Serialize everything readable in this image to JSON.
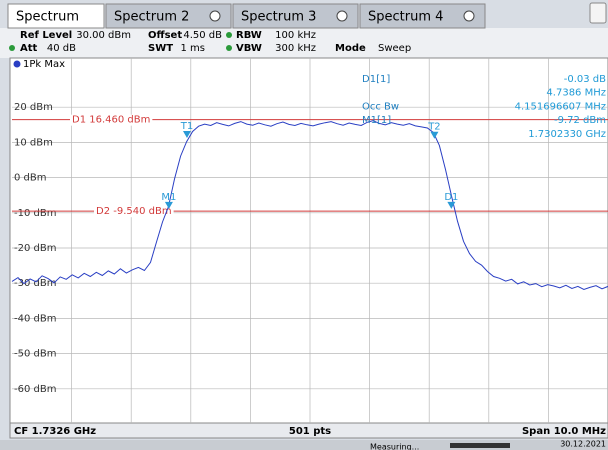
{
  "tabs": [
    {
      "label": "Spectrum"
    },
    {
      "label": "Spectrum 2"
    },
    {
      "label": "Spectrum 3"
    },
    {
      "label": "Spectrum 4"
    }
  ],
  "settings": [
    [
      {
        "name": "Ref Level",
        "value": "30.00 dBm"
      },
      {
        "name": "Offset",
        "value": "4.50 dB"
      },
      {
        "name": "RBW",
        "value": "100 kHz"
      }
    ],
    [
      {
        "name": "Att",
        "value": "40 dB"
      },
      {
        "name": "SWT",
        "value": "1 ms"
      },
      {
        "name": "VBW",
        "value": "300 kHz"
      },
      {
        "name": "Mode",
        "value": "Sweep"
      }
    ]
  ],
  "trace_label": "1Pk Max",
  "marker_table": [
    {
      "name": "D1[1]",
      "value": "-0.03 dB"
    },
    {
      "value": "4.7386 MHz"
    },
    {
      "name": "Occ Bw",
      "value": "4.151696607 MHz"
    },
    {
      "name": "M1[1]",
      "value": "-9.72 dBm"
    },
    {
      "value": "1.7302330 GHz"
    }
  ],
  "chart_data": {
    "type": "line",
    "ylim": [
      -70,
      30
    ],
    "xlim": [
      1727.6,
      1737.6
    ],
    "yticks": [
      {
        "value": 20,
        "label": "20 dBm"
      },
      {
        "value": 10,
        "label": "10 dBm"
      },
      {
        "value": 0,
        "label": "0 dBm"
      },
      {
        "value": -10,
        "label": "-10 dBm"
      },
      {
        "value": -20,
        "label": "-20 dBm"
      },
      {
        "value": -30,
        "label": "-30 dBm"
      },
      {
        "value": -40,
        "label": "-40 dBm"
      },
      {
        "value": -50,
        "label": "-50 dBm"
      },
      {
        "value": -60,
        "label": "-60 dBm"
      }
    ],
    "grid": true,
    "color": "#2a3fc4",
    "values": [
      -29.5,
      -28.4,
      -30.1,
      -28.8,
      -29.6,
      -27.9,
      -28.7,
      -29.9,
      -28.2,
      -28.9,
      -27.6,
      -28.5,
      -27.2,
      -28.1,
      -26.9,
      -27.8,
      -26.5,
      -27.4,
      -25.9,
      -27.1,
      -26.2,
      -25.5,
      -26.4,
      -24.1,
      -18.3,
      -12.6,
      -8.2,
      -0.4,
      6.1,
      10.2,
      13.1,
      14.6,
      15.2,
      14.8,
      15.6,
      15.1,
      14.7,
      15.4,
      15.9,
      15.2,
      14.9,
      15.5,
      15.0,
      14.6,
      15.3,
      15.8,
      15.1,
      14.8,
      15.4,
      15.0,
      14.7,
      15.2,
      15.6,
      15.9,
      15.3,
      14.9,
      15.5,
      15.1,
      14.8,
      15.7,
      16.2,
      15.4,
      15.0,
      15.6,
      15.2,
      14.9,
      15.3,
      14.7,
      14.4,
      14.1,
      12.8,
      9.1,
      2.3,
      -5.2,
      -12.4,
      -18.1,
      -21.6,
      -23.8,
      -24.9,
      -26.7,
      -28.1,
      -28.6,
      -29.4,
      -28.9,
      -30.2,
      -29.6,
      -30.5,
      -30.1,
      -31.0,
      -30.4,
      -30.8,
      -31.3,
      -30.6,
      -31.5,
      -30.9,
      -31.8,
      -31.2,
      -30.7,
      -31.6,
      -30.9
    ],
    "ref_lines": [
      {
        "label": "D1 16.460 dBm",
        "value": 16.46,
        "color": "#d23a3a"
      },
      {
        "label": "D2 -9.540 dBm",
        "value": -9.54,
        "color": "#d23a3a"
      }
    ],
    "markers": [
      {
        "label": "M1",
        "x": 1730.233,
        "y": -9.72
      },
      {
        "label": "T1",
        "x": 1730.536,
        "y": 10.4
      },
      {
        "label": "T2",
        "x": 1734.688,
        "y": 10.2
      },
      {
        "label": "D1",
        "x": 1734.9716,
        "y": -9.75
      }
    ],
    "marker_color": "#2a9ad6"
  },
  "footer": {
    "left": "CF 1.7326 GHz",
    "center": "501 pts",
    "right": "Span 10.0 MHz"
  },
  "status": {
    "state": "Measuring...",
    "date": "30.12.2021"
  }
}
